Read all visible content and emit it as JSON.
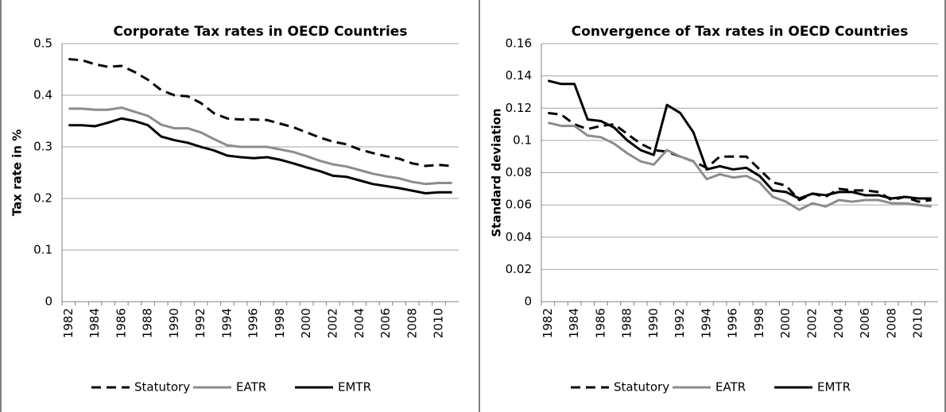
{
  "chart_data": [
    {
      "type": "line",
      "title": "Corporate Tax rates in OECD Countries",
      "y_label": "Tax rate in %",
      "categories": [
        "1982",
        null,
        "1984",
        null,
        "1986",
        null,
        "1988",
        null,
        "1990",
        null,
        "1992",
        null,
        "1994",
        null,
        "1996",
        null,
        "1998",
        null,
        "2000",
        null,
        "2002",
        null,
        "2004",
        null,
        "2006",
        null,
        "2008",
        null,
        "2010",
        null
      ],
      "series": [
        {
          "name": "Statutory",
          "color": "#000000",
          "dashed": true,
          "values": [
            0.47,
            0.468,
            0.46,
            0.455,
            0.457,
            0.445,
            0.43,
            0.41,
            0.4,
            0.398,
            0.385,
            0.365,
            0.355,
            0.353,
            0.353,
            0.352,
            0.345,
            0.338,
            0.328,
            0.318,
            0.31,
            0.305,
            0.295,
            0.288,
            0.282,
            0.277,
            0.268,
            0.263,
            0.265,
            0.263
          ]
        },
        {
          "name": "EATR",
          "color": "#8c8c8c",
          "dashed": false,
          "values": [
            0.374,
            0.374,
            0.372,
            0.372,
            0.376,
            0.368,
            0.36,
            0.343,
            0.336,
            0.336,
            0.328,
            0.315,
            0.303,
            0.3,
            0.3,
            0.3,
            0.295,
            0.29,
            0.282,
            0.273,
            0.266,
            0.262,
            0.255,
            0.248,
            0.243,
            0.239,
            0.232,
            0.228,
            0.23,
            0.23
          ]
        },
        {
          "name": "EMTR",
          "color": "#000000",
          "dashed": false,
          "values": [
            0.342,
            0.342,
            0.34,
            0.347,
            0.355,
            0.35,
            0.342,
            0.32,
            0.313,
            0.308,
            0.3,
            0.293,
            0.283,
            0.28,
            0.278,
            0.28,
            0.275,
            0.268,
            0.26,
            0.253,
            0.244,
            0.242,
            0.235,
            0.228,
            0.224,
            0.22,
            0.215,
            0.21,
            0.212,
            0.212
          ]
        }
      ],
      "ylim": [
        0,
        0.5
      ],
      "yticks": [
        0,
        0.1,
        0.2,
        0.3,
        0.4,
        0.5
      ],
      "grid": true,
      "legend": "bottom"
    },
    {
      "type": "line",
      "title": "Convergence of Tax rates in OECD Countries",
      "y_label": "Standard deviation",
      "categories": [
        "1982",
        null,
        "1984",
        null,
        "1986",
        null,
        "1988",
        null,
        "1990",
        null,
        "1992",
        null,
        "1994",
        null,
        "1996",
        null,
        "1998",
        null,
        "2000",
        null,
        "2002",
        null,
        "2004",
        null,
        "2006",
        null,
        "2008",
        null,
        "2010",
        null
      ],
      "series": [
        {
          "name": "Statutory",
          "color": "#000000",
          "dashed": true,
          "values": [
            0.117,
            0.116,
            0.11,
            0.107,
            0.109,
            0.11,
            0.104,
            0.098,
            0.094,
            0.093,
            0.09,
            0.087,
            0.083,
            0.09,
            0.09,
            0.09,
            0.082,
            0.074,
            0.072,
            0.063,
            0.067,
            0.065,
            0.07,
            0.069,
            0.069,
            0.068,
            0.063,
            0.065,
            0.062,
            0.063
          ]
        },
        {
          "name": "EATR",
          "color": "#8c8c8c",
          "dashed": false,
          "values": [
            0.111,
            0.109,
            0.109,
            0.103,
            0.102,
            0.098,
            0.092,
            0.087,
            0.085,
            0.094,
            0.09,
            0.087,
            0.076,
            0.079,
            0.077,
            0.078,
            0.074,
            0.065,
            0.062,
            0.057,
            0.061,
            0.059,
            0.063,
            0.062,
            0.063,
            0.063,
            0.061,
            0.061,
            0.06,
            0.059
          ]
        },
        {
          "name": "EMTR",
          "color": "#000000",
          "dashed": false,
          "values": [
            0.137,
            0.135,
            0.135,
            0.113,
            0.112,
            0.108,
            0.1,
            0.094,
            0.091,
            0.122,
            0.117,
            0.105,
            0.082,
            0.084,
            0.082,
            0.083,
            0.078,
            0.069,
            0.068,
            0.064,
            0.067,
            0.066,
            0.068,
            0.068,
            0.066,
            0.066,
            0.064,
            0.065,
            0.064,
            0.064
          ]
        }
      ],
      "ylim": [
        0,
        0.16
      ],
      "yticks": [
        0,
        0.02,
        0.04,
        0.06,
        0.08,
        0.1,
        0.12,
        0.14,
        0.16
      ],
      "grid": true,
      "legend": "bottom"
    }
  ]
}
